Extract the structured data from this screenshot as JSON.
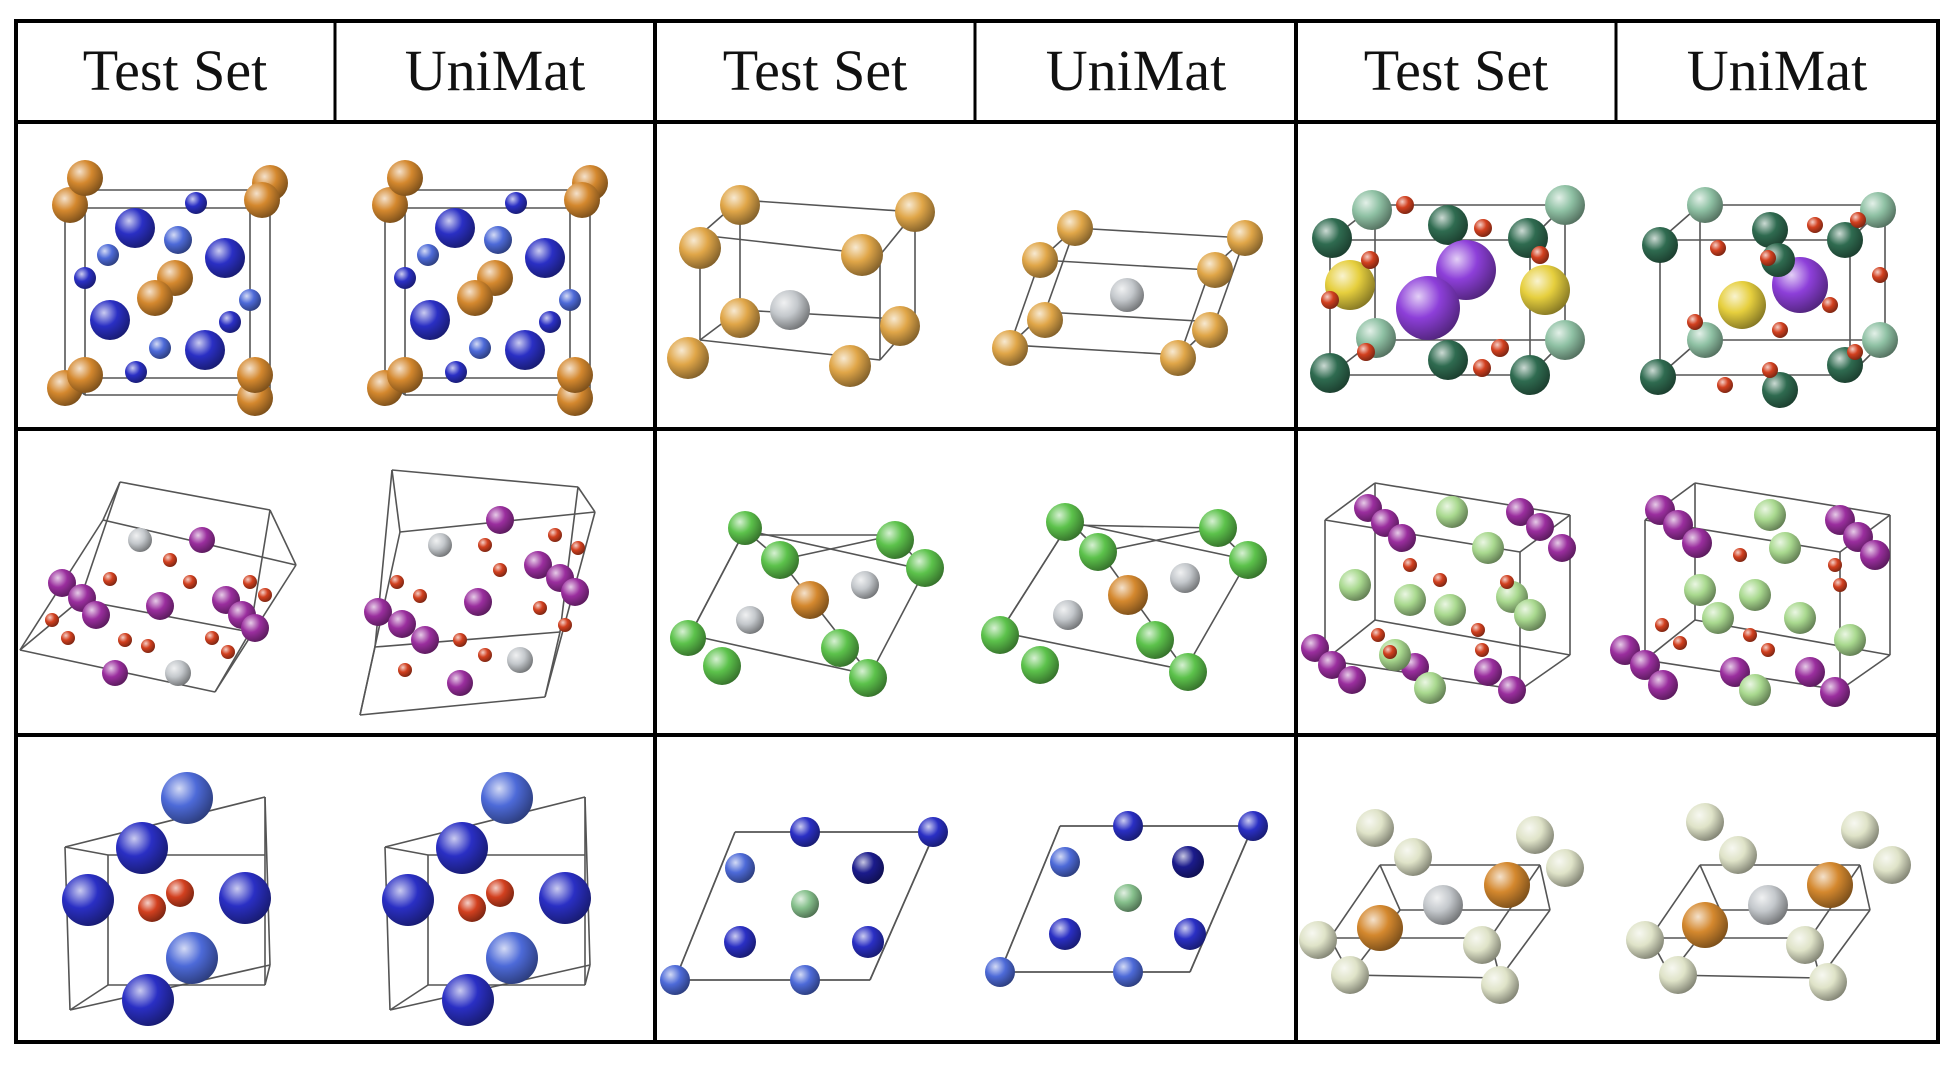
{
  "header": {
    "columns": [
      {
        "label": "Test Set"
      },
      {
        "label": "UniMat"
      },
      {
        "label": "Test Set"
      },
      {
        "label": "UniMat"
      },
      {
        "label": "Test Set"
      },
      {
        "label": "UniMat"
      }
    ]
  },
  "rows": [
    {
      "groups": [
        "structure-1-1",
        "structure-1-2",
        "structure-1-3"
      ]
    },
    {
      "groups": [
        "structure-2-1",
        "structure-2-2",
        "structure-2-3"
      ]
    },
    {
      "groups": [
        "structure-3-1",
        "structure-3-2",
        "structure-3-3"
      ]
    }
  ],
  "colors": {
    "orange": "#d4882e",
    "blue": "#2a2fc4",
    "lightblue": "#4d6ad8",
    "gold": "#e0a648",
    "gray": "#c4c8cc",
    "darkgreen": "#2f6b50",
    "seagreen": "#8fc1a4",
    "yellow": "#e6cf3e",
    "violet": "#8d3fd9",
    "red": "#d2401f",
    "magenta": "#9a2e9e",
    "green": "#5cc24b",
    "pale": "#dfe3c8",
    "navy": "#1b1b8c",
    "mint": "#86c08c",
    "lightgreen": "#a9d98f"
  }
}
